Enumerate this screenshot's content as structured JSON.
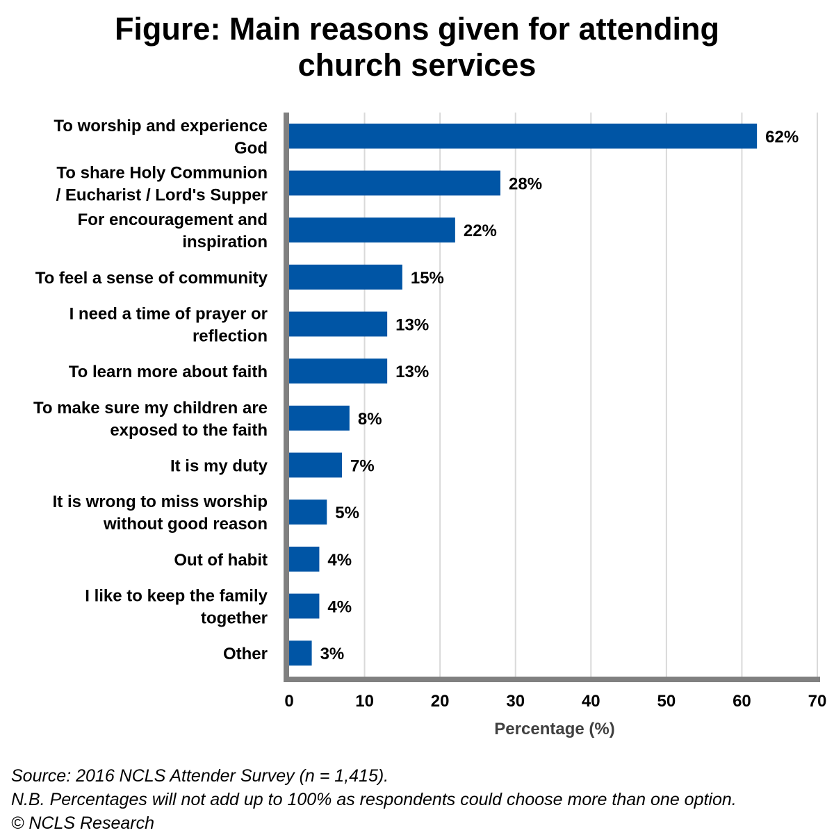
{
  "chart_data": {
    "type": "bar",
    "orientation": "horizontal",
    "title_lines": [
      "Figure: Main reasons given for attending",
      "church services"
    ],
    "categories": [
      [
        "To worship and experience",
        "God"
      ],
      [
        "To share Holy Communion",
        "/ Eucharist / Lord's Supper"
      ],
      [
        "For encouragement and",
        "inspiration"
      ],
      [
        "To feel a sense of community"
      ],
      [
        "I need a time of prayer or",
        "reflection"
      ],
      [
        "To learn more about faith"
      ],
      [
        "To make sure my children are",
        "exposed to the faith"
      ],
      [
        "It is my duty"
      ],
      [
        "It is wrong to miss worship",
        "without good reason"
      ],
      [
        "Out of habit"
      ],
      [
        "I like to keep the family",
        "together"
      ],
      [
        "Other"
      ]
    ],
    "values": [
      62,
      28,
      22,
      15,
      13,
      13,
      8,
      7,
      5,
      4,
      4,
      3
    ],
    "value_labels": [
      "62%",
      "28%",
      "22%",
      "15%",
      "13%",
      "13%",
      "8%",
      "7%",
      "5%",
      "4%",
      "4%",
      "3%"
    ],
    "xlabel": "Percentage (%)",
    "ylabel": "",
    "xlim": [
      0,
      70
    ],
    "x_ticks": [
      0,
      10,
      20,
      30,
      40,
      50,
      60,
      70
    ],
    "grid": true,
    "bar_color": "#0055a5",
    "axis_color": "#808080",
    "grid_color": "#d9d9d9"
  },
  "footnotes": {
    "source": "Source: 2016 NCLS Attender Survey (n = 1,415).",
    "note": "N.B. Percentages will not add up to 100% as respondents could choose more than one option.",
    "copyright": "© NCLS Research"
  }
}
